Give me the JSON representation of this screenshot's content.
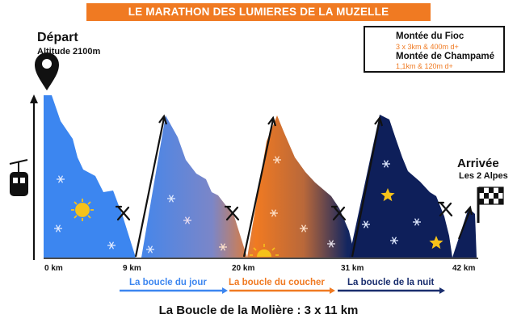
{
  "title": "LE MARATHON DES LUMIERES DE LA MUZELLE",
  "start": {
    "label": "Départ",
    "altitude": "Altitude 2100m"
  },
  "finish": {
    "label": "Arrivée",
    "place": "Les 2 Alpes"
  },
  "legend": [
    {
      "name": "Montée du Fioc",
      "detail": "3 x 3km & 400m d+"
    },
    {
      "name": "Montée de Champamé",
      "detail": "1,1km & 120m d+"
    }
  ],
  "distance_markers": [
    "0 km",
    "9 km",
    "20 km",
    "31 km",
    "42 km"
  ],
  "loops": [
    {
      "label": "La boucle du jour",
      "color": "#3c86f0"
    },
    {
      "label": "La boucle du coucher",
      "color": "#f07a22"
    },
    {
      "label": "La boucle de la nuit",
      "color": "#1a2e6e"
    }
  ],
  "caption": "La Boucle de la Molière : 3 x 11 km",
  "icons": {
    "start": "location-pin-icon",
    "lift": "gondola-lift-icon",
    "aid_station": "fork-knife-icon",
    "finish": "checkered-flag-icon",
    "day": "sun-icon",
    "sunset": "setting-sun-icon",
    "night": "star-icon",
    "snow": "snowflake-icon"
  },
  "colors": {
    "accent": "#f07a22",
    "day": "#3c86f0",
    "sunset": "#f07a22",
    "night": "#0e1f5a"
  }
}
